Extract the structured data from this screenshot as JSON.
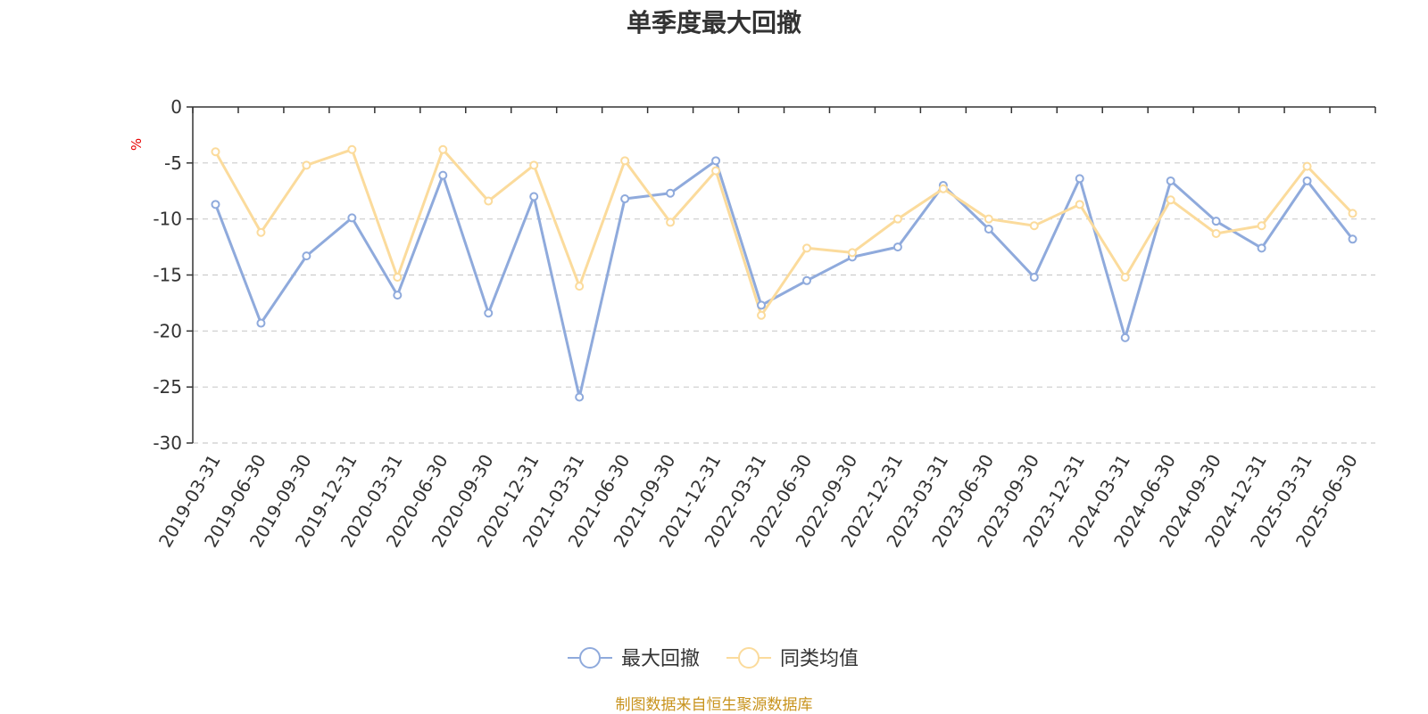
{
  "chart_data": {
    "type": "line",
    "title": "单季度最大回撤",
    "ylabel": "%",
    "ylim": [
      -30,
      0
    ],
    "yticks": [
      0,
      -5,
      -10,
      -15,
      -20,
      -25,
      -30
    ],
    "grid": true,
    "legend_position": "bottom-center",
    "categories": [
      "2019-03-31",
      "2019-06-30",
      "2019-09-30",
      "2019-12-31",
      "2020-03-31",
      "2020-06-30",
      "2020-09-30",
      "2020-12-31",
      "2021-03-31",
      "2021-06-30",
      "2021-09-30",
      "2021-12-31",
      "2022-03-31",
      "2022-06-30",
      "2022-09-30",
      "2022-12-31",
      "2023-03-31",
      "2023-06-30",
      "2023-09-30",
      "2023-12-31",
      "2024-03-31",
      "2024-06-30",
      "2024-09-30",
      "2024-12-31",
      "2025-03-31",
      "2025-06-30"
    ],
    "series": [
      {
        "name": "最大回撤",
        "color": "#8faadc",
        "values": [
          -8.7,
          -19.3,
          -13.3,
          -9.9,
          -16.8,
          -6.1,
          -18.4,
          -8.0,
          -25.9,
          -8.2,
          -7.7,
          -4.8,
          -17.7,
          -15.5,
          -13.4,
          -12.5,
          -7.0,
          -10.9,
          -15.2,
          -6.4,
          -20.6,
          -6.6,
          -10.2,
          -12.6,
          -6.6,
          -11.8
        ]
      },
      {
        "name": "同类均值",
        "color": "#fbdb9c",
        "values": [
          -4.0,
          -11.2,
          -5.2,
          -3.8,
          -15.2,
          -3.8,
          -8.4,
          -5.2,
          -16.0,
          -4.8,
          -10.3,
          -5.7,
          -18.6,
          -12.6,
          -13.0,
          -10.0,
          -7.3,
          -10.0,
          -10.6,
          -8.7,
          -15.2,
          -8.3,
          -11.3,
          -10.6,
          -5.3,
          -9.5
        ]
      }
    ]
  },
  "footer": {
    "source": "制图数据来自恒生聚源数据库"
  }
}
